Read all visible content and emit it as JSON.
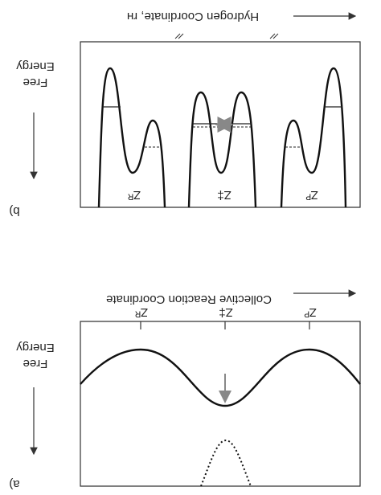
{
  "panel_b": {
    "label": "b)",
    "x_axis": "Hydrogen Coordinate, rʜ",
    "y_axis": [
      "Energy",
      "Free"
    ],
    "wells": [
      "Zᴿ",
      "Z‡",
      "Zᴾ"
    ]
  },
  "panel_a": {
    "label": "a)",
    "x_axis": "Collective Reaction Coordinate",
    "y_axis": [
      "Energy",
      "Free"
    ],
    "ticks": [
      "Zᴿ",
      "Z‡",
      "Zᴾ"
    ]
  }
}
